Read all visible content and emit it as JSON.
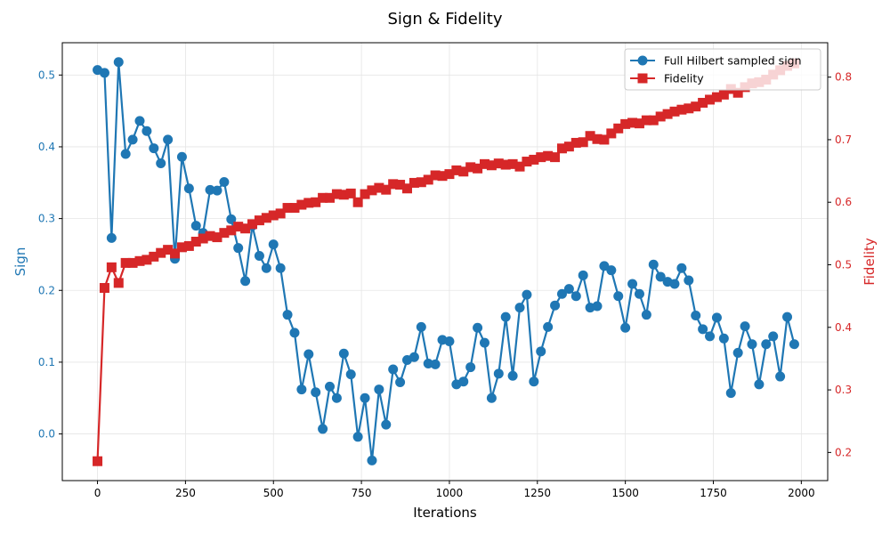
{
  "chart_data": {
    "type": "line",
    "title": "Sign & Fidelity",
    "xlabel": "Iterations",
    "ylabel_left": "Sign",
    "ylabel_right": "Fidelity",
    "xlim": [
      -100,
      2075
    ],
    "ylim_left": [
      -0.065,
      0.545
    ],
    "ylim_right": [
      0.155,
      0.855
    ],
    "x_ticks": [
      0,
      250,
      500,
      750,
      1000,
      1250,
      1500,
      1750,
      2000
    ],
    "x_tick_labels": [
      "0",
      "250",
      "500",
      "750",
      "1000",
      "1250",
      "1500",
      "1750",
      "2000"
    ],
    "y_left_ticks": [
      0.0,
      0.1,
      0.2,
      0.3,
      0.4,
      0.5
    ],
    "y_left_tick_labels": [
      "0.0",
      "0.1",
      "0.2",
      "0.3",
      "0.4",
      "0.5"
    ],
    "y_right_ticks": [
      0.2,
      0.3,
      0.4,
      0.5,
      0.6,
      0.7,
      0.8
    ],
    "y_right_tick_labels": [
      "0.2",
      "0.3",
      "0.4",
      "0.5",
      "0.6",
      "0.7",
      "0.8"
    ],
    "grid": true,
    "legend_position": "top-right",
    "colors": {
      "sign": "#1f77b4",
      "fidelity": "#d62728"
    },
    "x": [
      0,
      20,
      40,
      60,
      80,
      100,
      120,
      140,
      160,
      180,
      200,
      220,
      240,
      260,
      280,
      300,
      320,
      340,
      360,
      380,
      400,
      420,
      440,
      460,
      480,
      500,
      520,
      540,
      560,
      580,
      600,
      620,
      640,
      660,
      680,
      700,
      720,
      740,
      760,
      780,
      800,
      820,
      840,
      860,
      880,
      900,
      920,
      940,
      960,
      980,
      1000,
      1020,
      1040,
      1060,
      1080,
      1100,
      1120,
      1140,
      1160,
      1180,
      1200,
      1220,
      1240,
      1260,
      1280,
      1300,
      1320,
      1340,
      1360,
      1380,
      1400,
      1420,
      1440,
      1460,
      1480,
      1500,
      1520,
      1540,
      1560,
      1580,
      1600,
      1620,
      1640,
      1660,
      1680,
      1700,
      1720,
      1740,
      1760,
      1780,
      1800,
      1820,
      1840,
      1860,
      1880,
      1900,
      1920,
      1940,
      1960,
      1980
    ],
    "series": [
      {
        "name": "Full Hilbert sampled sign",
        "axis": "left",
        "marker": "circle",
        "values": [
          0.507,
          0.503,
          0.273,
          0.518,
          0.39,
          0.41,
          0.436,
          0.422,
          0.398,
          0.377,
          0.41,
          0.244,
          0.386,
          0.342,
          0.29,
          0.28,
          0.34,
          0.339,
          0.351,
          0.299,
          0.259,
          0.213,
          0.29,
          0.248,
          0.231,
          0.264,
          0.231,
          0.166,
          0.141,
          0.062,
          0.111,
          0.058,
          0.007,
          0.066,
          0.05,
          0.112,
          0.083,
          -0.004,
          0.05,
          -0.037,
          0.062,
          0.013,
          0.09,
          0.072,
          0.103,
          0.107,
          0.149,
          0.098,
          0.097,
          0.131,
          0.129,
          0.069,
          0.073,
          0.093,
          0.148,
          0.127,
          0.05,
          0.084,
          0.163,
          0.081,
          0.176,
          0.194,
          0.073,
          0.115,
          0.149,
          0.179,
          0.195,
          0.202,
          0.192,
          0.221,
          0.176,
          0.178,
          0.234,
          0.228,
          0.192,
          0.148,
          0.209,
          0.195,
          0.166,
          0.236,
          0.219,
          0.212,
          0.209,
          0.231,
          0.214,
          0.165,
          0.146,
          0.136,
          0.162,
          0.133,
          0.057,
          0.113,
          0.15,
          0.125,
          0.069,
          0.125,
          0.136,
          0.08,
          0.163,
          0.125
        ]
      },
      {
        "name": "Fidelity",
        "axis": "right",
        "marker": "square",
        "values": [
          0.186,
          0.463,
          0.496,
          0.471,
          0.503,
          0.503,
          0.506,
          0.508,
          0.513,
          0.519,
          0.524,
          0.518,
          0.528,
          0.53,
          0.537,
          0.542,
          0.546,
          0.544,
          0.551,
          0.555,
          0.561,
          0.558,
          0.565,
          0.571,
          0.575,
          0.579,
          0.582,
          0.591,
          0.591,
          0.596,
          0.599,
          0.6,
          0.607,
          0.607,
          0.613,
          0.612,
          0.614,
          0.6,
          0.613,
          0.619,
          0.623,
          0.62,
          0.629,
          0.628,
          0.622,
          0.631,
          0.632,
          0.636,
          0.643,
          0.642,
          0.645,
          0.651,
          0.649,
          0.656,
          0.654,
          0.661,
          0.659,
          0.662,
          0.66,
          0.661,
          0.657,
          0.665,
          0.668,
          0.672,
          0.674,
          0.672,
          0.686,
          0.689,
          0.695,
          0.696,
          0.706,
          0.701,
          0.7,
          0.71,
          0.718,
          0.725,
          0.727,
          0.726,
          0.731,
          0.731,
          0.737,
          0.741,
          0.745,
          0.748,
          0.75,
          0.753,
          0.759,
          0.764,
          0.768,
          0.772,
          0.781,
          0.775,
          0.784,
          0.79,
          0.792,
          0.796,
          0.804,
          0.811,
          0.818,
          0.822
        ]
      }
    ]
  }
}
